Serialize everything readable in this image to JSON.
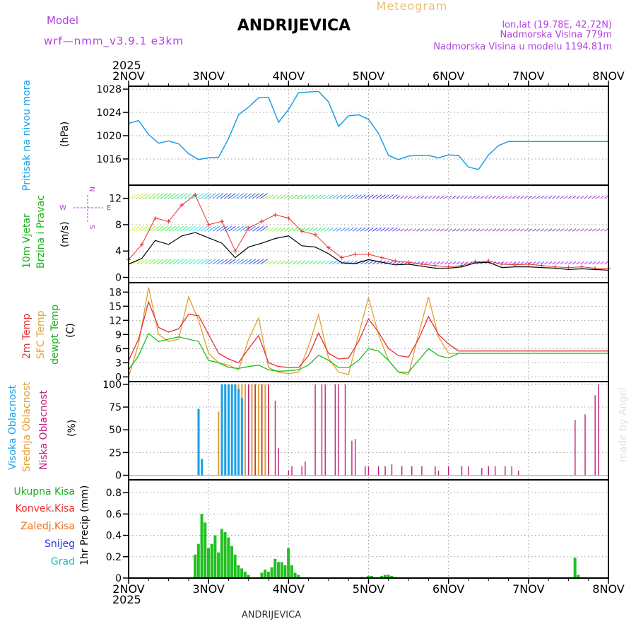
{
  "header": {
    "model_label": "Model",
    "model_name": "wrf—nmm_v3.9.1  e3km",
    "title": "ANDRIJEVICA",
    "subtitle": "Meteogram",
    "lonlat": "lon,lat (19.78E, 42.72N)",
    "elevation": "Nadmorska Visina 779m",
    "model_elevation": "Nadmorska Visina u modelu 1194.81m",
    "year_top": "2025",
    "year_bottom": "2025",
    "footer_station": "ANDRIJEVICA",
    "watermark": "made by Angel"
  },
  "x_axis": {
    "ticks": [
      "2NOV",
      "3NOV",
      "4NOV",
      "5NOV",
      "6NOV",
      "7NOV",
      "8NOV"
    ],
    "hours_range": [
      0,
      144
    ]
  },
  "colors": {
    "pressure": "#18a0e8",
    "wind_speed": "#000000",
    "gust": "#e83030",
    "temp2m": "#e83030",
    "sfc_temp": "#e0a030",
    "dewpt": "#18c018",
    "high_cloud": "#18a0e8",
    "mid_cloud": "#e0a030",
    "low_cloud": "#c0207a",
    "precip_total": "#20c020",
    "label_green": "#18b018",
    "label_red": "#e83030",
    "label_orange": "#e87020",
    "label_blue": "#3030e0",
    "label_cyan": "#18c0c0",
    "label_purple": "#b040e0"
  },
  "chart_data": [
    {
      "type": "line",
      "name": "pressure",
      "label": "Pritisak na nivou mora",
      "ylabel": "(hPa)",
      "ylim": [
        1011.5,
        1028.5
      ],
      "yticks": [
        "1016",
        "1020",
        "1024",
        "1028"
      ],
      "x_hours": [
        0,
        3,
        6,
        9,
        12,
        15,
        18,
        21,
        24,
        27,
        30,
        33,
        36,
        39,
        42,
        45,
        48,
        51,
        54,
        57,
        60,
        63,
        66,
        69,
        72,
        75,
        78,
        81,
        84,
        87,
        90,
        93,
        96,
        99,
        102,
        105,
        108,
        111,
        114,
        117,
        120,
        123,
        126,
        129,
        132,
        135,
        138,
        141,
        144
      ],
      "values": [
        1022.1,
        1022.6,
        1020.2,
        1018.7,
        1019.1,
        1018.6,
        1016.9,
        1015.9,
        1016.2,
        1016.3,
        1019.5,
        1023.6,
        1024.9,
        1026.5,
        1026.6,
        1022.3,
        1024.5,
        1027.4,
        1027.5,
        1027.6,
        1025.8,
        1021.6,
        1023.4,
        1023.6,
        1022.8,
        1020.4,
        1016.6,
        1015.9,
        1016.5,
        1016.6,
        1016.6,
        1016.2,
        1016.7,
        1016.6,
        1014.6,
        1014.2,
        1016.7,
        1018.3,
        1019.0,
        1019.0,
        1019.0,
        1019.0,
        1019.0,
        1019.0,
        1019.0,
        1019.0,
        1019.0,
        1019.0,
        1019.0
      ]
    },
    {
      "type": "line",
      "name": "wind",
      "label_1": "10m Vjetar",
      "label_2": "Brzina i Pravac",
      "ylabel": "(m/s)",
      "ylim": [
        -0.8,
        14
      ],
      "yticks": [
        "0",
        "4",
        "8",
        "12"
      ],
      "compass": {
        "n": "N",
        "w": "W",
        "e": "E",
        "s": "S"
      },
      "levels": [
        12,
        7,
        2
      ],
      "x_hours": [
        0,
        4,
        8,
        12,
        16,
        20,
        24,
        28,
        32,
        36,
        40,
        44,
        48,
        52,
        56,
        60,
        64,
        68,
        72,
        76,
        80,
        84,
        88,
        92,
        96,
        100,
        104,
        108,
        112,
        116,
        120,
        124,
        128,
        132,
        136,
        140,
        144
      ],
      "speed": [
        2.0,
        2.9,
        5.6,
        5.0,
        6.3,
        6.8,
        6.0,
        5.2,
        3.0,
        4.6,
        5.2,
        5.9,
        6.3,
        4.8,
        4.6,
        3.6,
        2.2,
        2.1,
        2.7,
        2.3,
        1.9,
        2.0,
        1.7,
        1.4,
        1.4,
        1.6,
        2.2,
        2.3,
        1.5,
        1.6,
        1.6,
        1.5,
        1.4,
        1.2,
        1.3,
        1.2,
        1.1
      ],
      "gust": [
        2.7,
        5.0,
        9.0,
        8.5,
        11.0,
        12.5,
        8.0,
        8.5,
        4.0,
        7.5,
        8.5,
        9.5,
        9.0,
        7.0,
        6.5,
        4.5,
        3.0,
        3.5,
        3.5,
        3.0,
        2.5,
        2.3,
        2.0,
        1.8,
        1.6,
        1.8,
        2.4,
        2.5,
        2.0,
        1.9,
        2.0,
        1.8,
        1.6,
        1.5,
        1.6,
        1.4,
        1.4
      ]
    },
    {
      "type": "line",
      "name": "temperature",
      "label_temp": "2m Temp",
      "label_sfc": "SFC Temp",
      "label_dew": "dewpt Temp",
      "ylabel": "(C)",
      "ylim": [
        -1,
        20
      ],
      "yticks": [
        "0",
        "3",
        "6",
        "9",
        "12",
        "15",
        "18"
      ],
      "x_hours": [
        0,
        3,
        6,
        9,
        12,
        15,
        18,
        21,
        24,
        27,
        30,
        33,
        36,
        39,
        42,
        45,
        48,
        51,
        54,
        57,
        60,
        63,
        66,
        69,
        72,
        75,
        78,
        81,
        84,
        87,
        90,
        93,
        96,
        99,
        102,
        105,
        108,
        111,
        114,
        117,
        120,
        123,
        126,
        129,
        132,
        135,
        138,
        141,
        144
      ],
      "temp2m": [
        3.5,
        8.0,
        15.9,
        10.5,
        9.5,
        10.2,
        13.3,
        13.0,
        9.0,
        5.0,
        3.8,
        3.0,
        6.0,
        8.8,
        3.0,
        2.2,
        2.0,
        2.0,
        4.5,
        9.3,
        5.0,
        3.8,
        4.0,
        7.5,
        12.3,
        9.5,
        6.0,
        4.5,
        4.2,
        8.0,
        12.8,
        9.0,
        7.0,
        5.5,
        5.5,
        5.5,
        5.5,
        5.5,
        5.5,
        5.5,
        5.5,
        5.5,
        5.5,
        5.5,
        5.5,
        5.5,
        5.5,
        5.5,
        5.5
      ],
      "sfc_temp": [
        0.0,
        7.0,
        19.0,
        9.0,
        7.5,
        8.0,
        17.0,
        12.0,
        5.0,
        3.0,
        2.5,
        1.5,
        8.0,
        12.5,
        2.0,
        1.0,
        0.7,
        1.0,
        6.5,
        13.2,
        4.0,
        1.0,
        0.5,
        9.0,
        16.8,
        9.0,
        3.5,
        1.0,
        0.5,
        9.0,
        17.0,
        8.5,
        5.0,
        5.0,
        5.0,
        5.0,
        5.0,
        5.0,
        5.0,
        5.0,
        5.0,
        5.0,
        5.0,
        5.0,
        5.0,
        5.0,
        5.0,
        5.0,
        5.0
      ],
      "dewpt": [
        1.5,
        4.5,
        9.2,
        7.5,
        8.0,
        8.5,
        8.0,
        7.5,
        3.5,
        3.0,
        2.0,
        1.8,
        2.2,
        2.5,
        1.5,
        1.2,
        1.3,
        1.5,
        2.5,
        4.6,
        3.5,
        2.0,
        2.0,
        3.5,
        6.0,
        5.5,
        3.5,
        1.0,
        1.0,
        3.5,
        6.0,
        4.5,
        4.0,
        5.0,
        5.0,
        5.0,
        5.0,
        5.0,
        5.0,
        5.0,
        5.0,
        5.0,
        5.0,
        5.0,
        5.0,
        5.0,
        5.0,
        5.0,
        5.0
      ]
    },
    {
      "type": "bar",
      "name": "cloud",
      "label_high": "Visoka Oblacnost",
      "label_mid": "Srednja Oblacnost",
      "label_low": "Niska Oblacnost",
      "ylabel": "(%)",
      "ylim": [
        -5,
        103
      ],
      "yticks": [
        "0",
        "25",
        "50",
        "75",
        "100"
      ],
      "high": [
        [
          21,
          73
        ],
        [
          22,
          18
        ],
        [
          28,
          100
        ],
        [
          29,
          100
        ],
        [
          30,
          100
        ],
        [
          31,
          100
        ],
        [
          32,
          100
        ],
        [
          33,
          95
        ],
        [
          34,
          85
        ]
      ],
      "mid": [
        [
          27,
          70
        ],
        [
          28,
          100
        ],
        [
          29,
          100
        ],
        [
          30,
          100
        ],
        [
          31,
          100
        ],
        [
          32,
          100
        ],
        [
          33,
          100
        ],
        [
          34,
          100
        ],
        [
          35,
          100
        ],
        [
          36,
          100
        ],
        [
          37,
          100
        ],
        [
          38,
          100
        ],
        [
          39,
          100
        ],
        [
          40,
          100
        ],
        [
          41,
          100
        ],
        [
          42,
          100
        ]
      ],
      "low": [
        [
          36,
          100
        ],
        [
          38,
          100
        ],
        [
          40,
          100
        ],
        [
          42,
          100
        ],
        [
          44,
          82
        ],
        [
          45,
          30
        ],
        [
          48,
          5
        ],
        [
          49,
          10
        ],
        [
          52,
          10
        ],
        [
          53,
          15
        ],
        [
          56,
          100
        ],
        [
          58,
          100
        ],
        [
          59,
          100
        ],
        [
          62,
          100
        ],
        [
          63,
          100
        ],
        [
          65,
          100
        ],
        [
          67,
          38
        ],
        [
          68,
          40
        ],
        [
          71,
          10
        ],
        [
          72,
          10
        ],
        [
          75,
          10
        ],
        [
          77,
          10
        ],
        [
          79,
          12
        ],
        [
          82,
          10
        ],
        [
          85,
          10
        ],
        [
          88,
          10
        ],
        [
          92,
          10
        ],
        [
          93,
          5
        ],
        [
          96,
          10
        ],
        [
          100,
          10
        ],
        [
          102,
          10
        ],
        [
          106,
          8
        ],
        [
          108,
          10
        ],
        [
          110,
          10
        ],
        [
          113,
          10
        ],
        [
          115,
          10
        ],
        [
          117,
          5
        ],
        [
          134,
          61
        ],
        [
          137,
          67
        ],
        [
          140,
          88
        ],
        [
          141,
          100
        ]
      ]
    },
    {
      "type": "bar",
      "name": "precip",
      "label_total": "Ukupna Kisa",
      "label_conv": "Konvek.Kisa",
      "label_frz": "Zaledj.Kisa",
      "label_snow": "Snijeg",
      "label_grad": "Grad",
      "ylabel": "1hr Precip (mm)",
      "ylim": [
        0,
        0.92
      ],
      "yticks": [
        "0",
        "0.2",
        "0.4",
        "0.6",
        "0.8"
      ],
      "bars": [
        [
          20,
          0.22
        ],
        [
          21,
          0.32
        ],
        [
          22,
          0.6
        ],
        [
          23,
          0.52
        ],
        [
          24,
          0.28
        ],
        [
          25,
          0.32
        ],
        [
          26,
          0.4
        ],
        [
          27,
          0.24
        ],
        [
          28,
          0.46
        ],
        [
          29,
          0.43
        ],
        [
          30,
          0.38
        ],
        [
          31,
          0.3
        ],
        [
          32,
          0.22
        ],
        [
          33,
          0.12
        ],
        [
          34,
          0.09
        ],
        [
          35,
          0.06
        ],
        [
          36,
          0.03
        ],
        [
          40,
          0.05
        ],
        [
          41,
          0.08
        ],
        [
          42,
          0.06
        ],
        [
          43,
          0.1
        ],
        [
          44,
          0.18
        ],
        [
          45,
          0.15
        ],
        [
          46,
          0.15
        ],
        [
          47,
          0.12
        ],
        [
          48,
          0.28
        ],
        [
          49,
          0.12
        ],
        [
          50,
          0.05
        ],
        [
          51,
          0.03
        ],
        [
          70,
          0.01
        ],
        [
          72,
          0.02
        ],
        [
          73,
          0.02
        ],
        [
          76,
          0.02
        ],
        [
          77,
          0.03
        ],
        [
          78,
          0.03
        ],
        [
          79,
          0.02
        ],
        [
          80,
          0.01
        ],
        [
          134,
          0.19
        ],
        [
          135,
          0.03
        ]
      ]
    }
  ]
}
